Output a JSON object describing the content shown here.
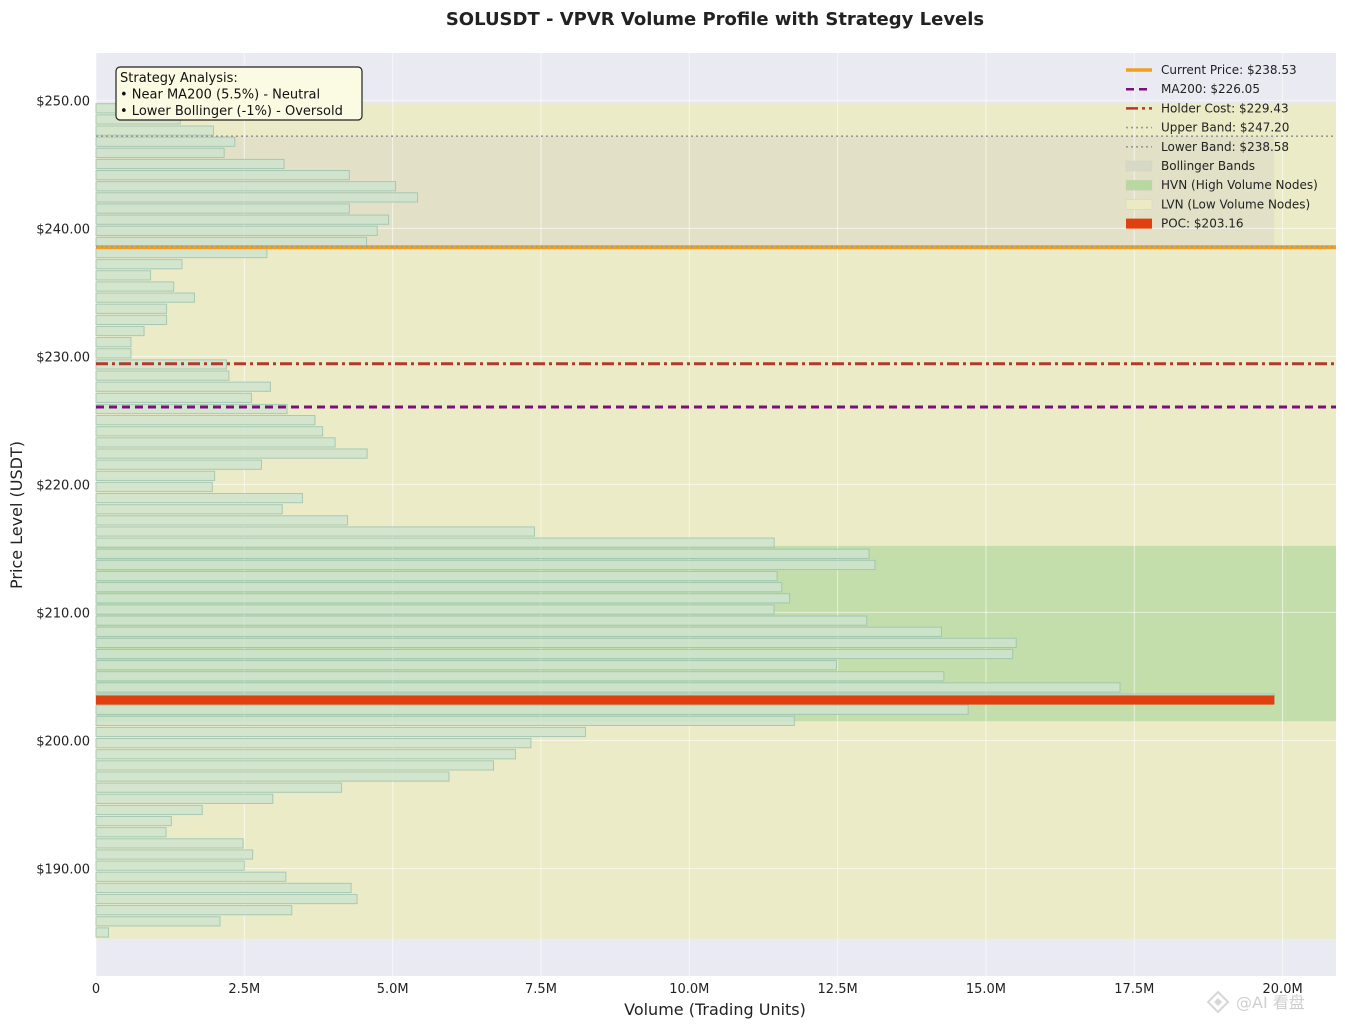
{
  "chart_data": {
    "type": "bar",
    "orientation": "horizontal",
    "title": "SOLUSDT - VPVR Volume Profile with Strategy Levels",
    "xlabel": "Volume (Trading Units)",
    "ylabel": "Price Level (USDT)",
    "xlim": [
      0,
      20900000
    ],
    "ylim": [
      181.6,
      253.7
    ],
    "x_ticks": [
      {
        "value": 0,
        "label": "0"
      },
      {
        "value": 2500000,
        "label": "2.5M"
      },
      {
        "value": 5000000,
        "label": "5.0M"
      },
      {
        "value": 7500000,
        "label": "7.5M"
      },
      {
        "value": 10000000,
        "label": "10.0M"
      },
      {
        "value": 12500000,
        "label": "12.5M"
      },
      {
        "value": 15000000,
        "label": "15.0M"
      },
      {
        "value": 17500000,
        "label": "17.5M"
      },
      {
        "value": 20000000,
        "label": "20.0M"
      }
    ],
    "y_ticks": [
      {
        "value": 190,
        "label": "$190.00"
      },
      {
        "value": 200,
        "label": "$200.00"
      },
      {
        "value": 210,
        "label": "$210.00"
      },
      {
        "value": 220,
        "label": "$220.00"
      },
      {
        "value": 230,
        "label": "$230.00"
      },
      {
        "value": 240,
        "label": "$240.00"
      },
      {
        "value": 250,
        "label": "$250.00"
      }
    ],
    "grid": true,
    "legend_position": "top-right",
    "bin_height": 0.72,
    "price_levels": [
      185.0,
      185.87,
      186.74,
      187.61,
      188.48,
      189.35,
      190.22,
      191.09,
      191.96,
      192.83,
      193.7,
      194.57,
      195.44,
      196.31,
      197.18,
      198.05,
      198.92,
      199.79,
      200.66,
      201.53,
      202.4,
      203.27,
      204.14,
      205.01,
      205.88,
      206.75,
      207.62,
      208.49,
      209.36,
      210.23,
      211.1,
      211.97,
      212.84,
      213.71,
      214.58,
      215.45,
      216.32,
      217.19,
      218.06,
      218.93,
      219.8,
      220.67,
      221.54,
      222.41,
      223.28,
      224.15,
      225.02,
      225.89,
      226.76,
      227.63,
      228.5,
      229.37,
      230.24,
      231.11,
      231.98,
      232.85,
      233.72,
      234.59,
      235.46,
      236.33,
      237.2,
      238.07,
      238.94,
      239.81,
      240.68,
      241.55,
      242.42,
      243.29,
      244.16,
      245.03,
      245.9,
      246.77,
      247.64,
      248.51,
      249.38
    ],
    "volumes": [
      210000,
      2090000,
      3300000,
      4400000,
      4300000,
      3200000,
      2500000,
      2640000,
      2480000,
      1180000,
      1270000,
      1790000,
      2980000,
      4140000,
      5950000,
      6700000,
      7070000,
      7330000,
      8250000,
      11770000,
      14700000,
      19860000,
      17260000,
      14290000,
      12480000,
      15450000,
      15510000,
      14250000,
      12990000,
      11430000,
      11690000,
      11560000,
      11480000,
      13130000,
      13030000,
      11430000,
      7390000,
      4240000,
      3140000,
      3480000,
      1960000,
      2000000,
      2790000,
      4570000,
      4030000,
      3820000,
      3690000,
      3220000,
      2620000,
      2940000,
      2240000,
      2200000,
      590000,
      590000,
      810000,
      1190000,
      1190000,
      1660000,
      1310000,
      920000,
      1450000,
      2880000,
      4560000,
      4740000,
      4930000,
      4270000,
      5420000,
      5050000,
      4270000,
      3170000,
      2160000,
      2340000,
      1980000,
      1420000,
      400000
    ],
    "series": [
      {
        "name": "Current Price: $238.53",
        "kind": "hline",
        "value": 238.53,
        "color": "#f0a020",
        "style": "solid"
      },
      {
        "name": "MA200: $226.05",
        "kind": "hline",
        "value": 226.05,
        "color": "#7b0f7b",
        "style": "dashed"
      },
      {
        "name": "Holder Cost: $229.43",
        "kind": "hline",
        "value": 229.43,
        "color": "#b03a2e",
        "style": "dashdot"
      },
      {
        "name": "Upper Band: $247.20",
        "kind": "hline",
        "value": 247.2,
        "color": "#999999",
        "style": "dotted"
      },
      {
        "name": "Lower Band: $238.58",
        "kind": "hline",
        "value": 238.58,
        "color": "#999999",
        "style": "dotted"
      },
      {
        "name": "Bollinger Bands",
        "kind": "band",
        "range": [
          238.58,
          247.2
        ],
        "color": "#d8d8c8"
      },
      {
        "name": "HVN (High Volume Nodes)",
        "kind": "band",
        "range": [
          201.5,
          215.2
        ],
        "color": "#b5d9a0"
      },
      {
        "name": "LVN (Low Volume Nodes)",
        "kind": "band",
        "range": [
          184.5,
          249.8
        ],
        "color": "#ecebc4"
      },
      {
        "name": "POC: $203.16",
        "kind": "poc",
        "value": 203.16,
        "volume": 19860000,
        "color": "#e04010"
      }
    ],
    "annotation": {
      "lines": [
        "Strategy Analysis:",
        "• Near MA200 (5.5%) - Neutral",
        "• Lower Bollinger (-1%) - Oversold"
      ]
    }
  },
  "watermark": "@AI 看盘",
  "colors": {
    "plot_bg": "#eaeaf2",
    "bar_fill": "#cfe4cf",
    "bar_edge": "#9cc3b0"
  }
}
